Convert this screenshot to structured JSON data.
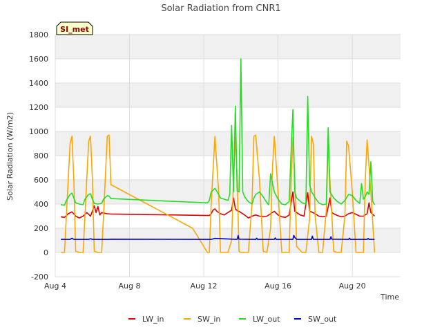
{
  "chart_data": {
    "type": "line",
    "title": "Solar Radiation from CNR1",
    "xlabel": "Time",
    "ylabel": "Solar Radiation (W/m2)",
    "ylim": [
      -200,
      1800
    ],
    "yticks": [
      -200,
      0,
      200,
      400,
      600,
      800,
      1000,
      1200,
      1400,
      1600,
      1800
    ],
    "xlim": [
      4.0,
      22.6
    ],
    "xticks": [
      {
        "value": 4,
        "label": "Aug 4"
      },
      {
        "value": 8,
        "label": "Aug 8"
      },
      {
        "value": 12,
        "label": "Aug 12"
      },
      {
        "value": 16,
        "label": "Aug 16"
      },
      {
        "value": 20,
        "label": "Aug 20"
      }
    ],
    "grid": true,
    "background_bands": true,
    "legend_position": "bottom",
    "station_badge": "SI_met",
    "series": [
      {
        "name": "LW_in",
        "color": "#dd0000",
        "x": [
          4.3,
          4.5,
          4.7,
          4.9,
          5.1,
          5.3,
          5.5,
          5.7,
          5.9,
          6.1,
          6.2,
          6.3,
          6.4,
          6.5,
          6.6,
          6.8,
          7.0,
          12.3,
          12.4,
          12.5,
          12.6,
          12.7,
          12.9,
          13.1,
          13.3,
          13.5,
          13.6,
          13.7,
          13.8,
          13.9,
          14.0,
          14.2,
          14.4,
          14.6,
          14.8,
          15.0,
          15.2,
          15.4,
          15.6,
          15.8,
          16.0,
          16.2,
          16.4,
          16.6,
          16.8,
          16.9,
          17.0,
          17.2,
          17.4,
          17.6,
          17.7,
          17.8,
          18.0,
          18.2,
          18.4,
          18.6,
          18.8,
          18.9,
          19.0,
          19.2,
          19.4,
          19.6,
          19.8,
          20.0,
          20.2,
          20.4,
          20.6,
          20.8,
          20.9,
          21.0,
          21.2
        ],
        "y": [
          295,
          290,
          320,
          335,
          300,
          285,
          300,
          330,
          300,
          385,
          330,
          380,
          310,
          330,
          325,
          320,
          318,
          305,
          320,
          350,
          360,
          340,
          320,
          310,
          330,
          350,
          450,
          360,
          345,
          340,
          330,
          310,
          285,
          300,
          310,
          300,
          295,
          300,
          320,
          340,
          310,
          295,
          290,
          310,
          500,
          340,
          330,
          310,
          300,
          495,
          340,
          335,
          320,
          300,
          295,
          300,
          450,
          330,
          320,
          305,
          295,
          300,
          320,
          330,
          315,
          300,
          300,
          320,
          410,
          330,
          300
        ]
      },
      {
        "name": "SW_in",
        "color": "#ffa500",
        "x": [
          4.3,
          4.5,
          4.6,
          4.8,
          4.9,
          5.0,
          5.1,
          5.3,
          5.5,
          5.6,
          5.8,
          5.9,
          6.0,
          6.1,
          6.3,
          6.5,
          6.6,
          6.8,
          6.9,
          7.0,
          11.4,
          12.2,
          12.3,
          12.4,
          12.6,
          12.8,
          12.9,
          13.1,
          13.3,
          13.5,
          13.6,
          13.7,
          13.8,
          13.9,
          14.0,
          14.2,
          14.4,
          14.6,
          14.7,
          14.8,
          15.0,
          15.2,
          15.4,
          15.6,
          15.7,
          15.8,
          16.0,
          16.2,
          16.4,
          16.6,
          16.7,
          16.8,
          16.9,
          17.0,
          17.3,
          17.5,
          17.7,
          17.8,
          17.9,
          18.0,
          18.2,
          18.4,
          18.6,
          18.7,
          18.8,
          19.0,
          19.2,
          19.4,
          19.6,
          19.7,
          19.8,
          20.0,
          20.2,
          20.4,
          20.6,
          20.7,
          20.8,
          21.0,
          21.2
        ],
        "y": [
          0,
          0,
          300,
          900,
          960,
          600,
          10,
          0,
          0,
          300,
          920,
          960,
          600,
          10,
          0,
          0,
          300,
          960,
          970,
          560,
          200,
          0,
          0,
          400,
          960,
          500,
          0,
          0,
          0,
          100,
          600,
          950,
          620,
          10,
          0,
          0,
          0,
          400,
          960,
          970,
          600,
          10,
          0,
          200,
          700,
          960,
          500,
          0,
          0,
          0,
          550,
          950,
          620,
          50,
          0,
          0,
          280,
          960,
          900,
          300,
          0,
          0,
          350,
          900,
          600,
          10,
          0,
          0,
          300,
          920,
          880,
          500,
          0,
          0,
          0,
          600,
          930,
          500,
          0
        ]
      },
      {
        "name": "LW_out",
        "color": "#22dd22",
        "x": [
          4.3,
          4.5,
          4.6,
          4.8,
          4.9,
          5.0,
          5.1,
          5.3,
          5.5,
          5.6,
          5.8,
          5.9,
          6.0,
          6.1,
          6.3,
          6.5,
          6.6,
          6.8,
          6.9,
          7.0,
          12.2,
          12.3,
          12.4,
          12.6,
          12.8,
          12.9,
          13.1,
          13.3,
          13.4,
          13.5,
          13.6,
          13.7,
          13.8,
          13.9,
          14.0,
          14.1,
          14.2,
          14.4,
          14.6,
          14.7,
          14.8,
          15.0,
          15.2,
          15.4,
          15.5,
          15.6,
          15.8,
          16.0,
          16.2,
          16.4,
          16.6,
          16.7,
          16.8,
          16.9,
          17.0,
          17.3,
          17.5,
          17.6,
          17.7,
          17.8,
          17.9,
          18.0,
          18.2,
          18.4,
          18.6,
          18.7,
          18.8,
          19.0,
          19.2,
          19.4,
          19.6,
          19.8,
          20.0,
          20.2,
          20.4,
          20.5,
          20.6,
          20.7,
          20.8,
          20.9,
          21.0,
          21.1,
          21.2
        ],
        "y": [
          395,
          390,
          430,
          480,
          490,
          450,
          410,
          400,
          395,
          440,
          480,
          485,
          440,
          405,
          400,
          405,
          440,
          470,
          465,
          445,
          410,
          430,
          500,
          530,
          480,
          450,
          440,
          430,
          480,
          1050,
          500,
          1210,
          510,
          500,
          1600,
          500,
          460,
          420,
          400,
          450,
          480,
          500,
          460,
          410,
          395,
          650,
          500,
          440,
          400,
          395,
          420,
          820,
          1180,
          500,
          450,
          410,
          400,
          1290,
          560,
          500,
          480,
          450,
          410,
          395,
          400,
          1030,
          500,
          450,
          420,
          400,
          430,
          480,
          470,
          430,
          405,
          570,
          440,
          460,
          500,
          480,
          750,
          420,
          395
        ]
      },
      {
        "name": "SW_out",
        "color": "#0000cc",
        "x": [
          4.3,
          4.8,
          4.9,
          5.0,
          5.8,
          5.9,
          6.0,
          6.9,
          7.0,
          12.4,
          12.6,
          13.8,
          13.85,
          13.9,
          14.8,
          14.85,
          14.9,
          15.8,
          15.85,
          15.9,
          16.8,
          16.85,
          16.9,
          17.0,
          17.8,
          17.85,
          17.9,
          18.8,
          18.85,
          18.9,
          19.8,
          19.85,
          19.9,
          20.8,
          20.85,
          20.9,
          21.2
        ],
        "y": [
          108,
          108,
          118,
          108,
          108,
          114,
          108,
          108,
          110,
          108,
          116,
          108,
          140,
          110,
          108,
          118,
          108,
          108,
          120,
          108,
          108,
          140,
          125,
          108,
          108,
          135,
          108,
          108,
          130,
          110,
          108,
          118,
          108,
          108,
          116,
          108,
          108
        ]
      }
    ]
  }
}
